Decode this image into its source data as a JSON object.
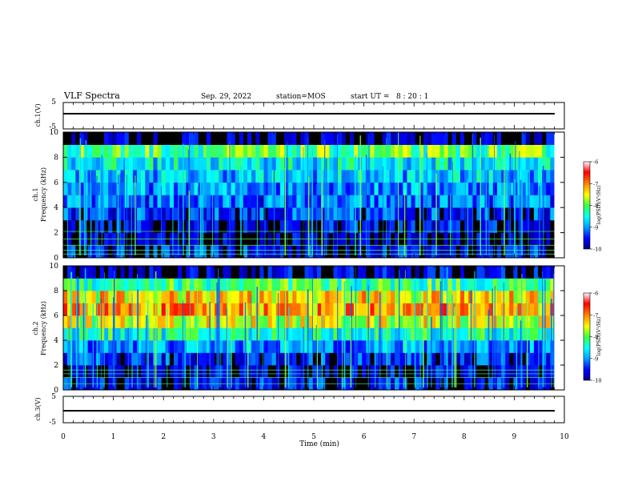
{
  "header": {
    "title": "VLF Spectra",
    "date": "Sep. 29, 2022",
    "station": "station=MOS",
    "start": "start UT =   8 : 20 : 1"
  },
  "panels": {
    "ch1_wave": {
      "ylabel": "ch.1(V)",
      "ticks": [
        "5",
        "-5"
      ]
    },
    "ch1_spec": {
      "ylabel_line1": "ch.1",
      "ylabel_line2": "Frequency (kHz)"
    },
    "ch2_spec": {
      "ylabel_line1": "ch.2",
      "ylabel_line2": "Frequency (kHz)"
    },
    "ch3_wave": {
      "ylabel": "ch.3(V)",
      "ticks": [
        "5",
        "-5"
      ]
    }
  },
  "colorbar": {
    "label": "log(PSD)(V²/Hz)",
    "ticks": [
      "-6",
      "-7",
      "-8",
      "-9",
      "-10"
    ],
    "range": [
      -10,
      -6
    ],
    "colors": [
      "#000080",
      "#0000ff",
      "#00a0ff",
      "#00ffff",
      "#40ff40",
      "#ffff00",
      "#ff8000",
      "#ff0000",
      "#ffffff"
    ]
  },
  "chart_data": [
    {
      "type": "line",
      "series": [
        {
          "values": [
            0,
            0,
            0,
            0,
            0,
            0,
            0,
            0,
            0,
            0,
            0
          ]
        }
      ],
      "x": [
        0,
        1,
        2,
        3,
        4,
        5,
        6,
        7,
        8,
        9,
        9.8
      ],
      "ylim": [
        -5,
        5
      ],
      "ylabel": "ch.1(V)"
    },
    {
      "type": "heatmap",
      "ylabel": "ch.1 Frequency (kHz)",
      "xlim": [
        0,
        10
      ],
      "ylim": [
        0,
        10
      ],
      "y_ticks": [
        "0",
        "2",
        "4",
        "6",
        "8",
        "10"
      ],
      "x_extent": 9.8,
      "freq_kHz": [
        0.5,
        1.5,
        2.5,
        3.5,
        4.5,
        5.5,
        6.5,
        7.5,
        8.5,
        9.5
      ],
      "log_psd": [
        -9.6,
        -9.9,
        -9.7,
        -9.4,
        -9.2,
        -9.0,
        -8.8,
        -8.6,
        -8.1,
        -9.9
      ],
      "horizontal_lines_kHz": [
        0.3,
        0.6,
        1.0,
        1.5,
        2.1
      ]
    },
    {
      "type": "heatmap",
      "ylabel": "ch.2 Frequency (kHz)",
      "xlim": [
        0,
        10
      ],
      "ylim": [
        0,
        10
      ],
      "y_ticks": [
        "0",
        "2",
        "4",
        "6",
        "8",
        "10"
      ],
      "x_extent": 9.8,
      "freq_kHz": [
        0.5,
        1.5,
        2.5,
        3.5,
        4.5,
        5.5,
        6.5,
        7.5,
        8.5,
        9.5
      ],
      "log_psd": [
        -9.6,
        -9.8,
        -9.5,
        -9.0,
        -8.4,
        -7.6,
        -7.1,
        -7.4,
        -8.2,
        -9.8
      ],
      "horizontal_lines_kHz": [
        0.5,
        1.0,
        1.3,
        1.6
      ]
    },
    {
      "type": "line",
      "series": [
        {
          "values": [
            0,
            0,
            0,
            0,
            0,
            0,
            0,
            0,
            0,
            0,
            0
          ]
        }
      ],
      "x": [
        0,
        1,
        2,
        3,
        4,
        5,
        6,
        7,
        8,
        9,
        9.8
      ],
      "ylim": [
        -5,
        5
      ],
      "ylabel": "ch.3(V)",
      "xlabel": "Time (min)",
      "x_ticks": [
        "0",
        "1",
        "2",
        "3",
        "4",
        "5",
        "6",
        "7",
        "8",
        "9",
        "10"
      ],
      "xlim": [
        0,
        10
      ]
    }
  ]
}
